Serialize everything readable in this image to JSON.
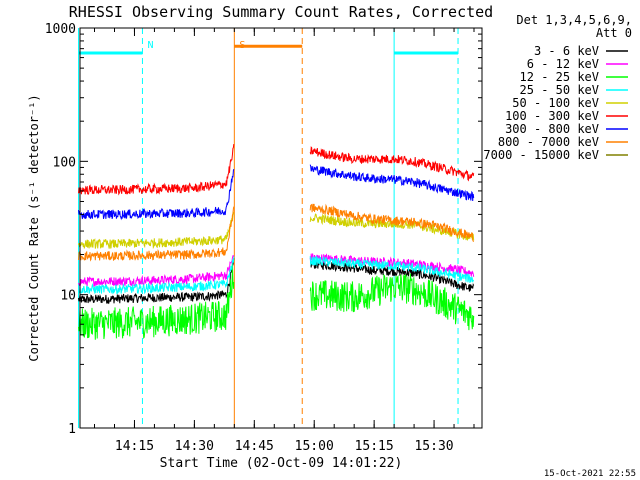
{
  "chart_data": {
    "type": "line",
    "title": "RHESSI Observing Summary Count Rates, Corrected",
    "xlabel": "Start Time (02-Oct-09 14:01:22)",
    "ylabel": "Corrected Count Rate (s⁻¹ detector⁻¹)",
    "x_scale": "time",
    "y_scale": "log",
    "x_range": [
      "14:01:22",
      "15:42"
    ],
    "ylim": [
      1,
      1000
    ],
    "x_ticks": [
      "14:15",
      "14:30",
      "14:45",
      "15:00",
      "15:15",
      "15:30"
    ],
    "y_ticks": [
      "1",
      "10",
      "100",
      "1000"
    ],
    "legend_header": [
      "Det 1,3,4,5,6,9,",
      "Att 0"
    ],
    "legend_position": "top-right, outside plot",
    "series": [
      {
        "name": "3 - 6 keV",
        "color": "#000000",
        "x": [
          "14:01",
          "14:10",
          "14:20",
          "14:30",
          "14:38",
          "14:40",
          "14:59",
          "15:05",
          "15:10",
          "15:15",
          "15:20",
          "15:25",
          "15:30",
          "15:35",
          "15:40"
        ],
        "y": [
          9.2,
          9.3,
          9.5,
          9.6,
          10,
          18,
          17,
          16.5,
          15.8,
          15.2,
          15,
          14.5,
          13.5,
          12,
          11
        ]
      },
      {
        "name": "6 - 12 keV",
        "color": "#ff00ff",
        "x": [
          "14:01",
          "14:10",
          "14:20",
          "14:30",
          "14:38",
          "14:40",
          "14:59",
          "15:05",
          "15:10",
          "15:15",
          "15:20",
          "15:25",
          "15:30",
          "15:35",
          "15:40"
        ],
        "y": [
          12.5,
          12.6,
          12.8,
          13.2,
          14,
          20,
          19,
          18.5,
          18,
          17.6,
          17.5,
          17,
          16.3,
          15.5,
          14.5
        ]
      },
      {
        "name": "12 - 25 keV",
        "color": "#00ff00",
        "x": [
          "14:01",
          "14:10",
          "14:20",
          "14:30",
          "14:38",
          "14:40",
          "14:59",
          "15:05",
          "15:10",
          "15:15",
          "15:20",
          "15:25",
          "15:30",
          "15:35",
          "15:40"
        ],
        "y": [
          6,
          6.1,
          6.3,
          6.6,
          7,
          16,
          10,
          9.8,
          9.6,
          10.5,
          11.5,
          11,
          9.5,
          8,
          6.8
        ]
      },
      {
        "name": "25 - 50 keV",
        "color": "#00ffff",
        "x": [
          "14:01",
          "14:10",
          "14:20",
          "14:30",
          "14:38",
          "14:40",
          "14:59",
          "15:05",
          "15:10",
          "15:15",
          "15:20",
          "15:25",
          "15:30",
          "15:35",
          "15:40"
        ],
        "y": [
          11,
          11,
          11.2,
          11.5,
          12,
          19,
          18,
          17.5,
          17,
          16.7,
          16.5,
          16,
          15,
          14,
          13
        ]
      },
      {
        "name": "50 - 100 keV",
        "color": "#d0d000",
        "x": [
          "14:01",
          "14:10",
          "14:20",
          "14:30",
          "14:38",
          "14:40",
          "14:59",
          "15:05",
          "15:10",
          "15:15",
          "15:20",
          "15:25",
          "15:30",
          "15:35",
          "15:40"
        ],
        "y": [
          24,
          24,
          24.5,
          25,
          26,
          41,
          38,
          36,
          34.5,
          34,
          34,
          33.5,
          31,
          29,
          26.5
        ]
      },
      {
        "name": "100 - 300 keV",
        "color": "#ff0000",
        "x": [
          "14:01",
          "14:10",
          "14:20",
          "14:30",
          "14:38",
          "14:40",
          "14:59",
          "15:05",
          "15:10",
          "15:15",
          "15:20",
          "15:25",
          "15:30",
          "15:35",
          "15:40"
        ],
        "y": [
          61,
          61,
          62,
          63,
          68,
          130,
          120,
          110,
          104,
          104,
          104,
          100,
          92,
          84,
          76
        ]
      },
      {
        "name": "300 - 800 keV",
        "color": "#0000ff",
        "x": [
          "14:01",
          "14:10",
          "14:20",
          "14:30",
          "14:38",
          "14:40",
          "14:59",
          "15:05",
          "15:10",
          "15:15",
          "15:20",
          "15:25",
          "15:30",
          "15:35",
          "15:40"
        ],
        "y": [
          40,
          40,
          40.5,
          41,
          43,
          93,
          88,
          82,
          77,
          74,
          73,
          70,
          64,
          59,
          54
        ]
      },
      {
        "name": "800 - 7000 keV",
        "color": "#ff8000",
        "x": [
          "14:01",
          "14:10",
          "14:20",
          "14:30",
          "14:38",
          "14:40",
          "14:59",
          "15:05",
          "15:10",
          "15:15",
          "15:20",
          "15:25",
          "15:30",
          "15:35",
          "15:40"
        ],
        "y": [
          19.5,
          19.5,
          19.8,
          20,
          21,
          48,
          45,
          42,
          39,
          37,
          36,
          35,
          33,
          30,
          27
        ]
      },
      {
        "name": "7000 - 15000 keV",
        "color": "#808000",
        "x": [],
        "y": []
      }
    ],
    "flag_markers": [
      {
        "label": "",
        "color": "#00ffff",
        "at": "14:01",
        "style": "solid"
      },
      {
        "label": "N",
        "color": "#00ffff",
        "at": "14:17",
        "style": "dashed"
      },
      {
        "label": "S",
        "color": "#ff8000",
        "at": "14:40",
        "style": "solid"
      },
      {
        "label": "",
        "color": "#ff8000",
        "at": "14:57",
        "style": "dashed"
      },
      {
        "label": "",
        "color": "#00ffff",
        "at": "15:20",
        "style": "solid"
      },
      {
        "label": "",
        "color": "#00ffff",
        "at": "15:36",
        "style": "dashed"
      }
    ],
    "flag_bars": [
      {
        "color": "#00ffff",
        "from": "14:01",
        "to": "14:17",
        "y": 650
      },
      {
        "color": "#ff8000",
        "from": "14:40",
        "to": "14:57",
        "y": 730
      },
      {
        "color": "#00ffff",
        "from": "15:20",
        "to": "15:36",
        "y": 650
      }
    ],
    "timestamp": "15-Oct-2021 22:55"
  }
}
